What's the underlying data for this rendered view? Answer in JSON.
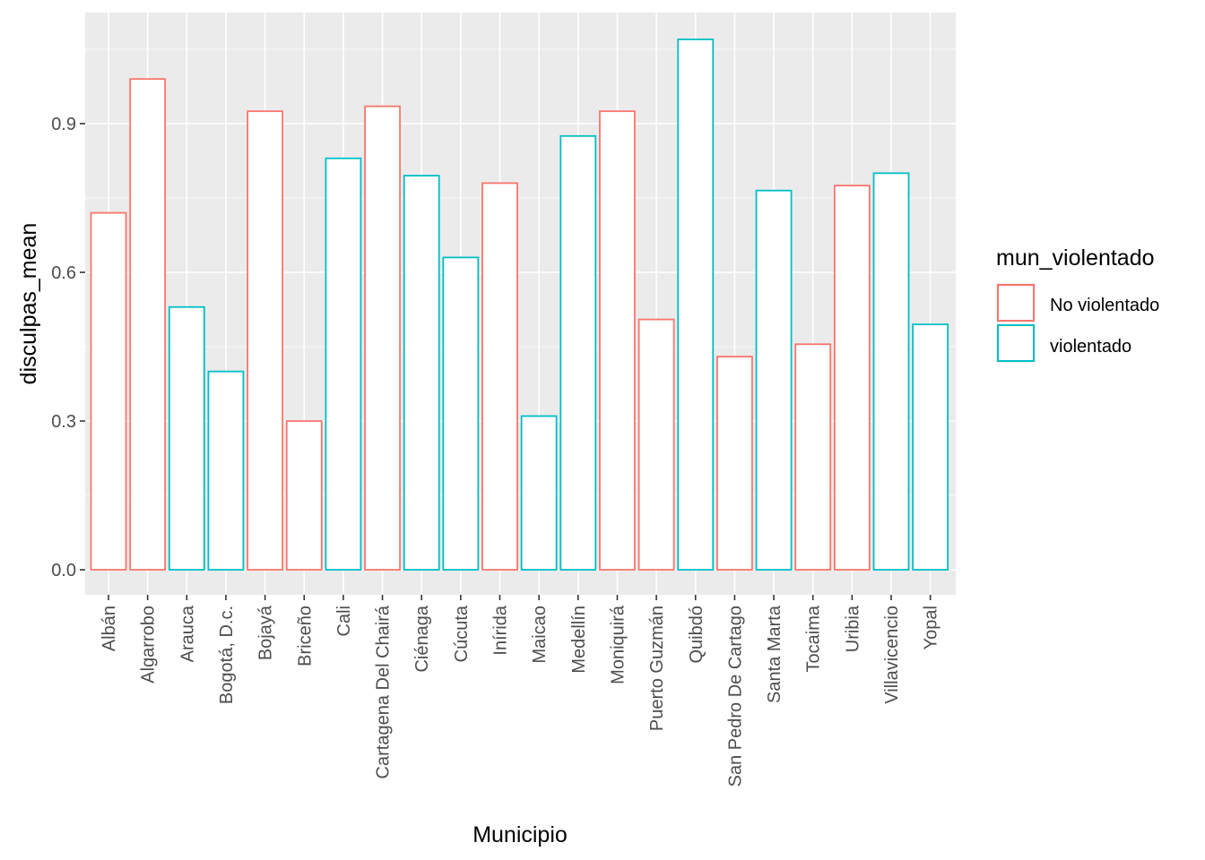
{
  "chart_data": {
    "type": "bar",
    "xlabel": "Municipio",
    "ylabel": "disculpas_mean",
    "ylim": [
      -0.05,
      1.12
    ],
    "yticks": [
      0.0,
      0.3,
      0.6,
      0.9
    ],
    "ytick_labels": [
      "0.0",
      "0.3",
      "0.6",
      "0.9"
    ],
    "grid": true,
    "legend": {
      "title": "mun_violentado",
      "position": "right",
      "entries": [
        {
          "label": "No violentado",
          "color": "#F8766D"
        },
        {
          "label": "violentado",
          "color": "#00BFC4"
        }
      ]
    },
    "categories": [
      "Albán",
      "Algarrobo",
      "Arauca",
      "Bogotá, D.c.",
      "Bojayá",
      "Briceño",
      "Cali",
      "Cartagena Del Chairá",
      "Ciénaga",
      "Cúcuta",
      "Inírida",
      "Maicao",
      "Medellín",
      "Moniquirá",
      "Puerto Guzmán",
      "Quibdó",
      "San Pedro De Cartago",
      "Santa Marta",
      "Tocaima",
      "Uribia",
      "Villavicencio",
      "Yopal"
    ],
    "values": [
      0.72,
      0.99,
      0.53,
      0.4,
      0.925,
      0.3,
      0.83,
      0.935,
      0.795,
      0.63,
      0.78,
      0.31,
      0.875,
      0.925,
      0.505,
      1.07,
      0.43,
      0.765,
      0.455,
      0.775,
      0.8,
      0.495
    ],
    "group": [
      "No violentado",
      "No violentado",
      "violentado",
      "violentado",
      "No violentado",
      "No violentado",
      "violentado",
      "No violentado",
      "violentado",
      "violentado",
      "No violentado",
      "violentado",
      "violentado",
      "No violentado",
      "No violentado",
      "violentado",
      "No violentado",
      "violentado",
      "No violentado",
      "No violentado",
      "violentado",
      "violentado"
    ]
  },
  "colors": {
    "panel_background": "#EBEBEB",
    "grid_major": "#FFFFFF",
    "bar_fill": "#FFFFFF",
    "tick_text": "#4D4D4D",
    "tick_mark": "#333333"
  }
}
